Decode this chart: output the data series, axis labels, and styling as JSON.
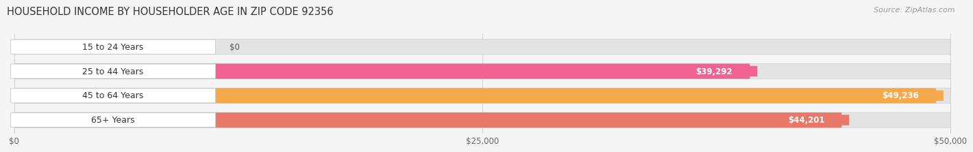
{
  "title": "HOUSEHOLD INCOME BY HOUSEHOLDER AGE IN ZIP CODE 92356",
  "source": "Source: ZipAtlas.com",
  "categories": [
    "15 to 24 Years",
    "25 to 44 Years",
    "45 to 64 Years",
    "65+ Years"
  ],
  "values": [
    0,
    39292,
    49236,
    44201
  ],
  "bar_colors": [
    "#a8a8d8",
    "#f06292",
    "#f5a94a",
    "#e8796a"
  ],
  "value_labels": [
    "$0",
    "$39,292",
    "$49,236",
    "$44,201"
  ],
  "x_ticks": [
    0,
    25000,
    50000
  ],
  "x_tick_labels": [
    "$0",
    "$25,000",
    "$50,000"
  ],
  "xlim": [
    0,
    50000
  ],
  "background_color": "#f5f5f5",
  "bar_bg_color": "#e4e4e4",
  "bar_bg_edge": "#d8d8d8",
  "title_fontsize": 10.5,
  "source_fontsize": 8,
  "bar_label_fontsize": 9,
  "value_label_fontsize": 8.5,
  "tick_fontsize": 8.5
}
